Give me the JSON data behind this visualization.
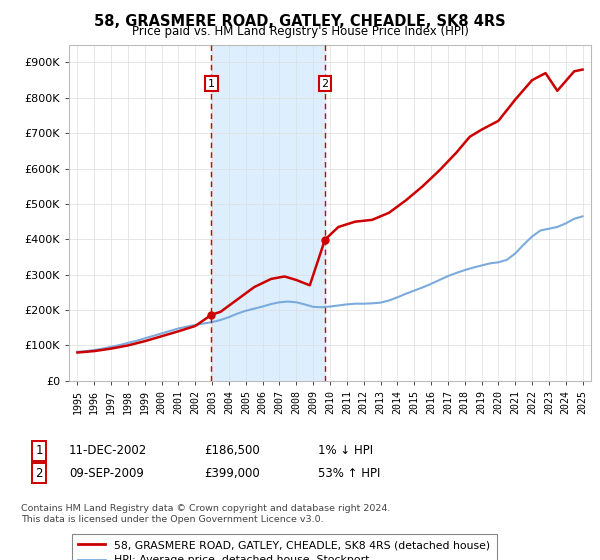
{
  "title": "58, GRASMERE ROAD, GATLEY, CHEADLE, SK8 4RS",
  "subtitle": "Price paid vs. HM Land Registry's House Price Index (HPI)",
  "legend_line1": "58, GRASMERE ROAD, GATLEY, CHEADLE, SK8 4RS (detached house)",
  "legend_line2": "HPI: Average price, detached house, Stockport",
  "transaction1_label": "1",
  "transaction1_date": "11-DEC-2002",
  "transaction1_price": 186500,
  "transaction1_hpi_diff": "1% ↓ HPI",
  "transaction2_label": "2",
  "transaction2_date": "09-SEP-2009",
  "transaction2_price": 399000,
  "transaction2_hpi_diff": "53% ↑ HPI",
  "footnote1": "Contains HM Land Registry data © Crown copyright and database right 2024.",
  "footnote2": "This data is licensed under the Open Government Licence v3.0.",
  "sale1_year": 2002.95,
  "sale2_year": 2009.7,
  "house_color": "#cc0000",
  "hpi_color": "#7aabdc",
  "shade_color": "#ddeeff",
  "ylim_min": 0,
  "ylim_max": 950000,
  "xlim_min": 1994.5,
  "xlim_max": 2025.5,
  "hpi_years": [
    1995.0,
    1995.5,
    1996.0,
    1996.5,
    1997.0,
    1997.5,
    1998.0,
    1998.5,
    1999.0,
    1999.5,
    2000.0,
    2000.5,
    2001.0,
    2001.5,
    2002.0,
    2002.5,
    2003.0,
    2003.5,
    2004.0,
    2004.5,
    2005.0,
    2005.5,
    2006.0,
    2006.5,
    2007.0,
    2007.5,
    2008.0,
    2008.5,
    2009.0,
    2009.5,
    2010.0,
    2010.5,
    2011.0,
    2011.5,
    2012.0,
    2012.5,
    2013.0,
    2013.5,
    2014.0,
    2014.5,
    2015.0,
    2015.5,
    2016.0,
    2016.5,
    2017.0,
    2017.5,
    2018.0,
    2018.5,
    2019.0,
    2019.5,
    2020.0,
    2020.5,
    2021.0,
    2021.5,
    2022.0,
    2022.5,
    2023.0,
    2023.5,
    2024.0,
    2024.5,
    2025.0
  ],
  "hpi_values": [
    82000,
    84000,
    87000,
    91000,
    96000,
    101000,
    107000,
    113000,
    120000,
    127000,
    134000,
    141000,
    148000,
    153000,
    158000,
    162000,
    166000,
    172000,
    180000,
    190000,
    198000,
    204000,
    210000,
    217000,
    222000,
    224000,
    222000,
    216000,
    209000,
    208000,
    210000,
    213000,
    216000,
    218000,
    218000,
    219000,
    221000,
    227000,
    236000,
    246000,
    255000,
    264000,
    274000,
    285000,
    296000,
    305000,
    313000,
    320000,
    326000,
    332000,
    335000,
    342000,
    360000,
    385000,
    408000,
    425000,
    430000,
    435000,
    445000,
    458000,
    465000
  ],
  "house_years": [
    1995.0,
    1996.0,
    1997.0,
    1998.0,
    1999.0,
    2000.0,
    2001.0,
    2002.0,
    2002.95,
    2003.5,
    2004.5,
    2005.5,
    2006.5,
    2007.3,
    2008.0,
    2008.8,
    2009.7,
    2010.5,
    2011.5,
    2012.5,
    2013.5,
    2014.5,
    2015.5,
    2016.5,
    2017.5,
    2018.3,
    2019.0,
    2020.0,
    2021.0,
    2022.0,
    2022.8,
    2023.5,
    2024.5,
    2025.0
  ],
  "house_values": [
    80000,
    84000,
    91000,
    100000,
    112000,
    126000,
    140000,
    155000,
    186500,
    195000,
    230000,
    265000,
    288000,
    295000,
    285000,
    270000,
    399000,
    435000,
    450000,
    455000,
    475000,
    510000,
    550000,
    595000,
    645000,
    690000,
    710000,
    735000,
    795000,
    850000,
    870000,
    820000,
    875000,
    880000
  ]
}
